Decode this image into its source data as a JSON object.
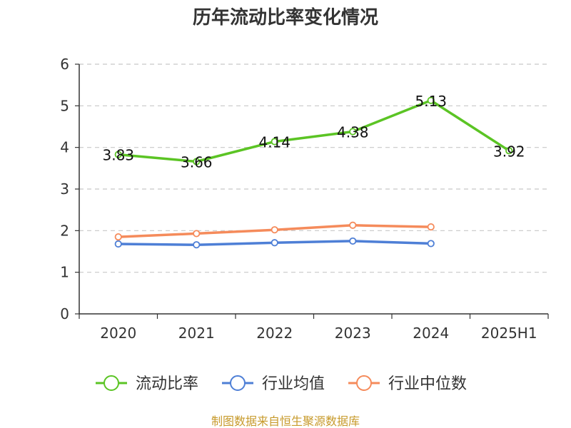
{
  "chart_data": {
    "type": "line",
    "title": "历年流动比率变化情况",
    "categories": [
      "2020",
      "2021",
      "2022",
      "2023",
      "2024",
      "2025H1"
    ],
    "ylim": [
      0,
      6
    ],
    "yticks": [
      "0",
      "1",
      "2",
      "3",
      "4",
      "5",
      "6"
    ],
    "grid": true,
    "legend_position": "bottom",
    "series": [
      {
        "name": "流动比率",
        "color": "#5bc424",
        "values": [
          3.83,
          3.66,
          4.14,
          4.38,
          5.13,
          3.92
        ],
        "labels": [
          "3.83",
          "3.66",
          "4.14",
          "4.38",
          "5.13",
          "3.92"
        ]
      },
      {
        "name": "行业均值",
        "color": "#4e7fd6",
        "values": [
          1.68,
          1.66,
          1.71,
          1.75,
          1.69,
          null
        ]
      },
      {
        "name": "行业中位数",
        "color": "#f58b5b",
        "values": [
          1.85,
          1.93,
          2.02,
          2.13,
          2.09,
          null
        ]
      }
    ]
  },
  "source_text": "制图数据来自恒生聚源数据库",
  "source_color": "#c79a2b"
}
